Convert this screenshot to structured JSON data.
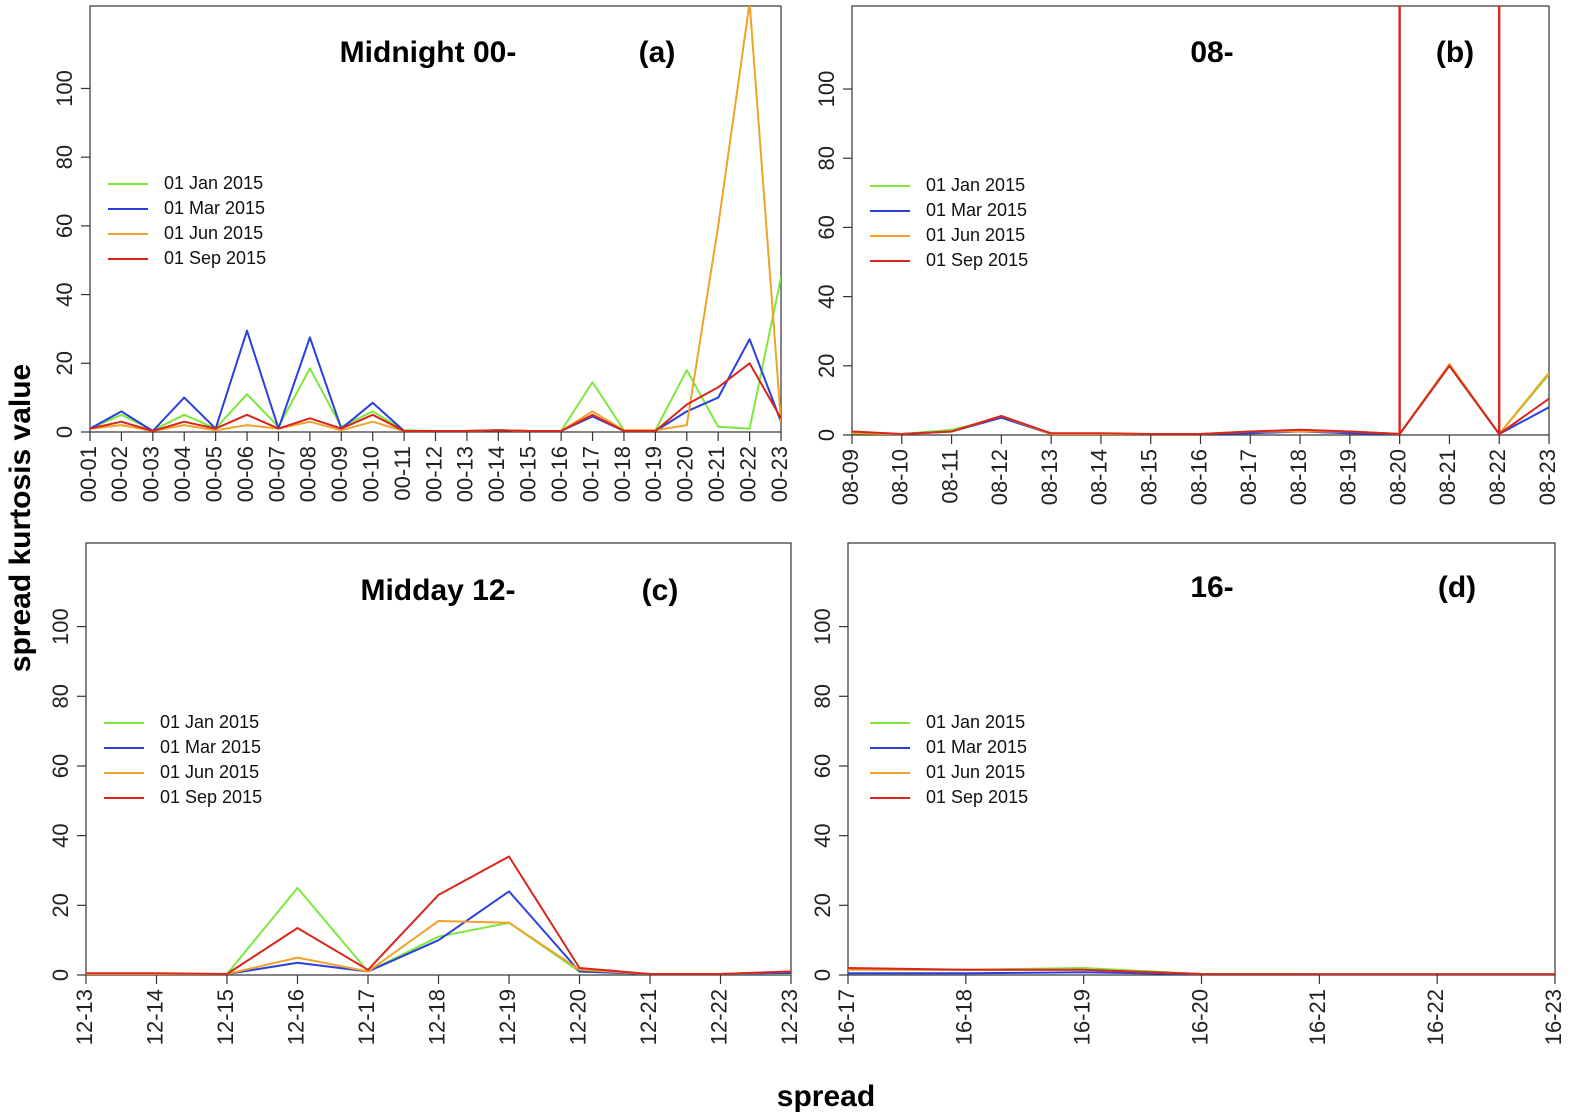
{
  "figure": {
    "ylabel": "spread kurtosis value",
    "xlabel": "spread"
  },
  "colors": {
    "01 Jan 2015": "#7de83a",
    "01 Mar 2015": "#2a3fe0",
    "01 Jun 2015": "#f0a22a",
    "01 Sep 2015": "#d8261c"
  },
  "chart_data": [
    {
      "type": "line",
      "title": "Midnight 00-",
      "tag": "(a)",
      "categories": [
        "00-01",
        "00-02",
        "00-03",
        "00-04",
        "00-05",
        "00-06",
        "00-07",
        "00-08",
        "00-09",
        "00-10",
        "00-11",
        "00-12",
        "00-13",
        "00-14",
        "00-15",
        "00-16",
        "00-17",
        "00-18",
        "00-19",
        "00-20",
        "00-21",
        "00-22",
        "00-23"
      ],
      "yticks": [
        0,
        20,
        40,
        60,
        80,
        100
      ],
      "ylim": [
        0,
        124
      ],
      "legend": "left",
      "series": [
        {
          "name": "01 Jan 2015",
          "values": [
            1,
            5,
            0.5,
            5,
            1,
            11,
            1.5,
            18.5,
            1.5,
            6,
            0.5,
            0.3,
            0.3,
            0.5,
            0.3,
            0.3,
            14.5,
            0.5,
            0.5,
            18,
            1.5,
            1,
            45
          ]
        },
        {
          "name": "01 Mar 2015",
          "values": [
            1,
            6,
            0.3,
            10,
            1,
            29.5,
            1,
            27.5,
            1,
            8.5,
            0.3,
            0.3,
            0.3,
            0.5,
            0.3,
            0.3,
            4.5,
            0.3,
            0.3,
            6,
            10,
            27,
            3
          ]
        },
        {
          "name": "01 Jun 2015",
          "values": [
            1,
            2,
            0.3,
            2,
            0.5,
            2,
            1,
            3,
            0.5,
            3,
            0.3,
            0.3,
            0.3,
            0.5,
            0.3,
            0.3,
            6,
            0.5,
            0.5,
            2,
            60,
            125,
            3
          ]
        },
        {
          "name": "01 Sep 2015",
          "values": [
            1,
            3,
            0.3,
            3,
            1,
            5,
            1,
            4,
            1,
            5,
            0.3,
            0.3,
            0.3,
            0.5,
            0.3,
            0.3,
            5,
            0.3,
            0.3,
            8,
            13,
            20,
            4
          ]
        }
      ]
    },
    {
      "type": "line",
      "title": "08-",
      "tag": "(b)",
      "categories": [
        "08-09",
        "08-10",
        "08-11",
        "08-12",
        "08-13",
        "08-14",
        "08-15",
        "08-16",
        "08-17",
        "08-18",
        "08-19",
        "08-20",
        "08-21",
        "08-22",
        "08-23"
      ],
      "yticks": [
        0,
        20,
        40,
        60,
        80,
        100
      ],
      "ylim": [
        0,
        124
      ],
      "legend": "left",
      "vlines": [
        "08-20",
        "08-22"
      ],
      "series": [
        {
          "name": "01 Jan 2015",
          "values": [
            0.5,
            0.3,
            1.5,
            5,
            0.3,
            0.3,
            0.3,
            0.3,
            1,
            1,
            1,
            0.3,
            20,
            0.3,
            17.5
          ]
        },
        {
          "name": "01 Mar 2015",
          "values": [
            0.5,
            0.3,
            1,
            5,
            0.3,
            0.3,
            0.3,
            0.3,
            0.5,
            1,
            0.5,
            0.3,
            20,
            0.3,
            8
          ]
        },
        {
          "name": "01 Jun 2015",
          "values": [
            0.5,
            0.3,
            1,
            5.5,
            0.3,
            0.3,
            0.3,
            0.3,
            1,
            1,
            1,
            0.3,
            20.5,
            0.3,
            18
          ]
        },
        {
          "name": "01 Sep 2015",
          "values": [
            1,
            0.3,
            1,
            5.5,
            0.5,
            0.5,
            0.3,
            0.3,
            1,
            1.5,
            1,
            0.3,
            20,
            0.3,
            10.5
          ]
        }
      ]
    },
    {
      "type": "line",
      "title": "Midday 12-",
      "tag": "(c)",
      "categories": [
        "12-13",
        "12-14",
        "12-15",
        "12-16",
        "12-17",
        "12-18",
        "12-19",
        "12-20",
        "12-21",
        "12-22",
        "12-23"
      ],
      "yticks": [
        0,
        20,
        40,
        60,
        80,
        100
      ],
      "ylim": [
        0,
        124
      ],
      "legend": "left",
      "series": [
        {
          "name": "01 Jan 2015",
          "values": [
            0.3,
            0.3,
            0.3,
            25,
            1,
            11,
            15,
            1,
            0.3,
            0.3,
            0.3
          ]
        },
        {
          "name": "01 Mar 2015",
          "values": [
            0.3,
            0.3,
            0.3,
            3.5,
            1,
            10,
            24,
            1,
            0.3,
            0.3,
            0.5
          ]
        },
        {
          "name": "01 Jun 2015",
          "values": [
            0.3,
            0.3,
            0.3,
            5,
            1,
            15.5,
            15,
            1.5,
            0.3,
            0.3,
            1
          ]
        },
        {
          "name": "01 Sep 2015",
          "values": [
            0.5,
            0.5,
            0.3,
            13.5,
            1.5,
            23,
            34,
            2,
            0.3,
            0.3,
            1
          ]
        }
      ]
    },
    {
      "type": "line",
      "title": "16-",
      "tag": "(d)",
      "categories": [
        "16-17",
        "16-18",
        "16-19",
        "16-20",
        "16-21",
        "16-22",
        "16-23"
      ],
      "yticks": [
        0,
        20,
        40,
        60,
        80,
        100
      ],
      "ylim": [
        0,
        124
      ],
      "legend": "left",
      "series": [
        {
          "name": "01 Jan 2015",
          "values": [
            1.5,
            1.5,
            2,
            0.3,
            0.2,
            0.2,
            0.2
          ]
        },
        {
          "name": "01 Mar 2015",
          "values": [
            0.5,
            0.5,
            0.8,
            0.2,
            0.2,
            0.2,
            0.2
          ]
        },
        {
          "name": "01 Jun 2015",
          "values": [
            1.5,
            1.5,
            1.5,
            0.3,
            0.2,
            0.2,
            0.2
          ]
        },
        {
          "name": "01 Sep 2015",
          "values": [
            2,
            1.5,
            1.5,
            0.3,
            0.2,
            0.2,
            0.2
          ]
        }
      ]
    }
  ]
}
